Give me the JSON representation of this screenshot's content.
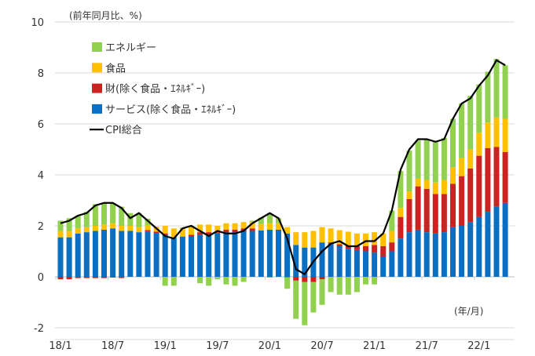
{
  "chart_data": {
    "type": "bar",
    "title": "",
    "ylabel": "(前年同月比、%)",
    "xlabel": "(年/月)",
    "ylim": [
      -2,
      10
    ],
    "yticks": [
      -2,
      0,
      2,
      4,
      6,
      8,
      10
    ],
    "xtick_labels": [
      "18/1",
      "18/7",
      "19/1",
      "19/7",
      "20/1",
      "20/7",
      "21/1",
      "21/7",
      "22/1"
    ],
    "colors": {
      "services": "#0a6fc2",
      "goods": "#cc2222",
      "food": "#ffc000",
      "energy": "#92d050",
      "cpi": "#000000"
    },
    "legend": [
      "エネルギー",
      "食品",
      "財(除く食品・ｴﾈﾙｷﾞｰ)",
      "サービス(除く食品・ｴﾈﾙｷﾞｰ)",
      "CPI総合"
    ],
    "legend_position": "top-left",
    "series": [
      {
        "key": "services",
        "name": "サービス(除く食品・ｴﾈﾙｷﾞｰ)",
        "values": [
          1.55,
          1.55,
          1.7,
          1.75,
          1.8,
          1.85,
          1.9,
          1.8,
          1.8,
          1.75,
          1.78,
          1.72,
          1.65,
          1.55,
          1.58,
          1.6,
          1.65,
          1.65,
          1.7,
          1.75,
          1.75,
          1.8,
          1.8,
          1.82,
          1.85,
          1.85,
          1.7,
          1.25,
          1.15,
          1.15,
          1.35,
          1.3,
          1.2,
          1.1,
          1.05,
          1.0,
          0.95,
          0.8,
          1.0,
          1.5,
          1.75,
          1.85,
          1.75,
          1.7,
          1.75,
          1.95,
          2.0,
          2.15,
          2.35,
          2.55,
          2.75,
          2.9
        ]
      },
      {
        "key": "goods",
        "name": "財(除く食品・ｴﾈﾙｷﾞｰ)",
        "values": [
          -0.1,
          -0.1,
          -0.05,
          -0.05,
          -0.05,
          -0.05,
          -0.03,
          -0.05,
          0,
          0,
          0.05,
          0.05,
          0.05,
          0,
          0,
          0.05,
          0.1,
          0.1,
          0.05,
          0.1,
          0.1,
          0.1,
          0.1,
          0,
          -0.02,
          0,
          -0.02,
          -0.15,
          -0.2,
          -0.2,
          -0.1,
          0.05,
          0.08,
          0.12,
          0.15,
          0.2,
          0.3,
          0.4,
          0.35,
          0.85,
          1.3,
          1.7,
          1.7,
          1.55,
          1.5,
          1.7,
          1.95,
          2.1,
          2.4,
          2.5,
          2.35,
          2.0
        ]
      },
      {
        "key": "food",
        "name": "食品",
        "values": [
          0.25,
          0.25,
          0.2,
          0.2,
          0.2,
          0.2,
          0.2,
          0.2,
          0.2,
          0.2,
          0.2,
          0.2,
          0.3,
          0.35,
          0.3,
          0.3,
          0.3,
          0.3,
          0.25,
          0.25,
          0.25,
          0.25,
          0.25,
          0.25,
          0.25,
          0.25,
          0.25,
          0.5,
          0.6,
          0.65,
          0.6,
          0.55,
          0.55,
          0.55,
          0.5,
          0.5,
          0.5,
          0.5,
          0.45,
          0.35,
          0.3,
          0.3,
          0.35,
          0.45,
          0.55,
          0.65,
          0.7,
          0.75,
          0.9,
          1.0,
          1.15,
          1.3
        ]
      },
      {
        "key": "energy",
        "name": "エネルギー",
        "values": [
          0.4,
          0.5,
          0.5,
          0.6,
          0.85,
          0.85,
          0.8,
          0.75,
          0.5,
          0.55,
          0.25,
          0,
          -0.35,
          -0.35,
          0.05,
          0.05,
          -0.25,
          -0.35,
          -0.1,
          -0.3,
          -0.35,
          -0.2,
          0.05,
          0.25,
          0.4,
          0.2,
          -0.45,
          -1.5,
          -1.7,
          -1.2,
          -1.0,
          -0.6,
          -0.7,
          -0.7,
          -0.6,
          -0.3,
          -0.3,
          0,
          0.8,
          1.45,
          1.6,
          1.5,
          1.6,
          1.6,
          1.65,
          1.9,
          2.15,
          2.1,
          1.9,
          2.0,
          2.3,
          2.1
        ]
      },
      {
        "key": "cpi",
        "name": "CPI総合",
        "type": "line",
        "values": [
          2.1,
          2.2,
          2.4,
          2.5,
          2.8,
          2.9,
          2.9,
          2.7,
          2.3,
          2.5,
          2.2,
          1.9,
          1.6,
          1.5,
          1.9,
          2.0,
          1.8,
          1.6,
          1.8,
          1.7,
          1.7,
          1.8,
          2.1,
          2.3,
          2.5,
          2.3,
          1.5,
          0.3,
          0.1,
          0.6,
          1.0,
          1.3,
          1.4,
          1.2,
          1.2,
          1.4,
          1.4,
          1.7,
          2.6,
          4.2,
          5.0,
          5.4,
          5.4,
          5.3,
          5.4,
          6.2,
          6.8,
          7.0,
          7.5,
          7.9,
          8.5,
          8.3
        ]
      }
    ]
  }
}
